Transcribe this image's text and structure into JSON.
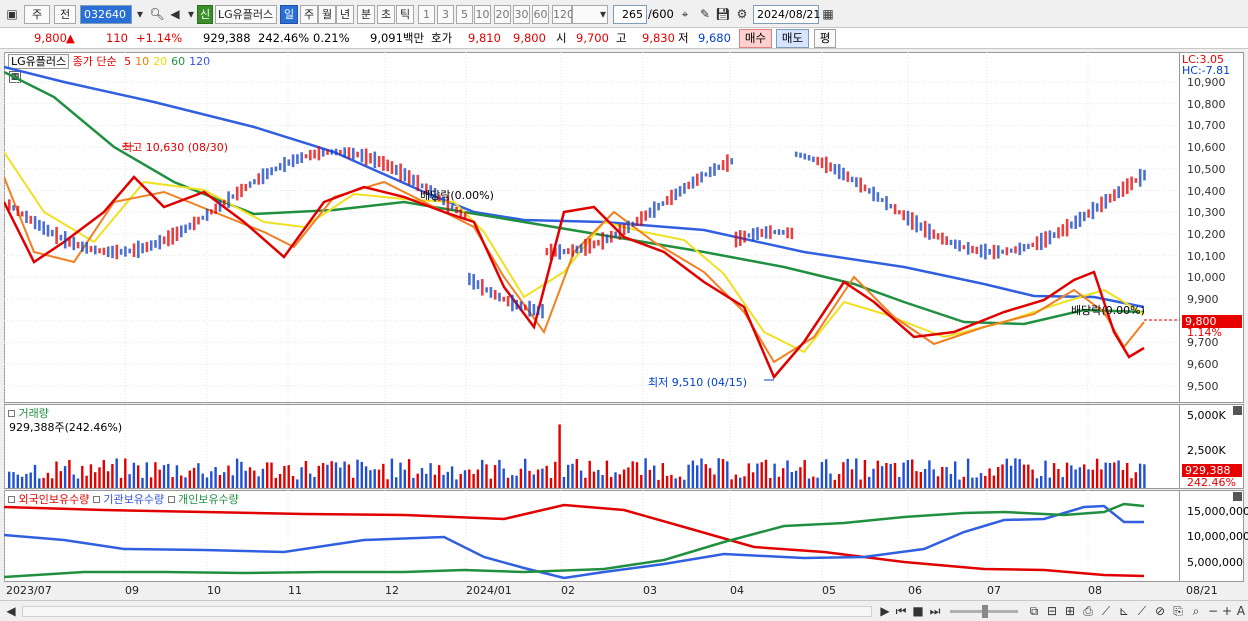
{
  "toolbar": {
    "period_a": "주",
    "period_b": "전",
    "stock_code": "032640",
    "stock_name": "LG유플러스",
    "credit_badge": "신",
    "tabs": [
      "일",
      "주",
      "월",
      "년",
      "분",
      "초",
      "틱"
    ],
    "active_tab": "일",
    "intervals": [
      "1",
      "3",
      "5",
      "10",
      "20",
      "30",
      "60",
      "120"
    ],
    "count": "265",
    "count_total": "/600",
    "date": "2024/08/21"
  },
  "quote": {
    "price": "9,800",
    "change_arrow": "▲",
    "change": "110",
    "change_pct": "+1.14%",
    "volume": "929,388",
    "volume_ratio": "242.46%",
    "turnover_pct": "0.21%",
    "amount": "9,091백만",
    "bid_label": "호가",
    "bid1": "9,810",
    "bid2": "9,800",
    "open_label": "시",
    "open": "9,700",
    "high_label": "고",
    "high": "9,830",
    "low_label": "저",
    "low": "9,680",
    "buy_label": "매수",
    "sell_label": "매도",
    "eval_label": "평"
  },
  "chart": {
    "price_legend": {
      "name": "LG유플러스",
      "close_label": "종가",
      "ma_label": "단순",
      "ma": [
        {
          "period": "5",
          "color": "#e00000"
        },
        {
          "period": "10",
          "color": "#f08000"
        },
        {
          "period": "20",
          "color": "#e8e000"
        },
        {
          "period": "60",
          "color": "#209040"
        },
        {
          "period": "120",
          "color": "#3050e0"
        }
      ]
    },
    "lc": "LC:3.05",
    "hc": "HC:-7.81",
    "price_ticks": [
      "10,900",
      "10,800",
      "10,700",
      "10,600",
      "10,500",
      "10,400",
      "10,300",
      "10,200",
      "10,100",
      "10,000",
      "9,900",
      "9,800",
      "9,700",
      "9,600",
      "9,500"
    ],
    "current_price": "9,800",
    "current_pct": "1.14%",
    "annotations": {
      "high": "최고 10,630 (08/30)",
      "low": "최저 9,510 (04/15)",
      "div1": "배당락(0.00%)",
      "div2": "배당락(0.00%)"
    },
    "volume_legend": "거래량",
    "volume_value": "929,388주(242.46%)",
    "volume_ticks": [
      "5,000K",
      "2,500K"
    ],
    "volume_box": "929,388",
    "volume_box_pct": "242.46%",
    "holders_legend": [
      "외국인보유수량",
      "기관보유수량",
      "개인보유수량"
    ],
    "holders_colors": [
      "#e00000",
      "#3050e0",
      "#209040"
    ],
    "holders_ticks": [
      "15,000,000",
      "10,000,000",
      "5,000,000"
    ],
    "x_labels": [
      "2023/07",
      "09",
      "10",
      "11",
      "12",
      "2024/01",
      "02",
      "03",
      "04",
      "05",
      "06",
      "07",
      "08",
      "08/21"
    ]
  }
}
